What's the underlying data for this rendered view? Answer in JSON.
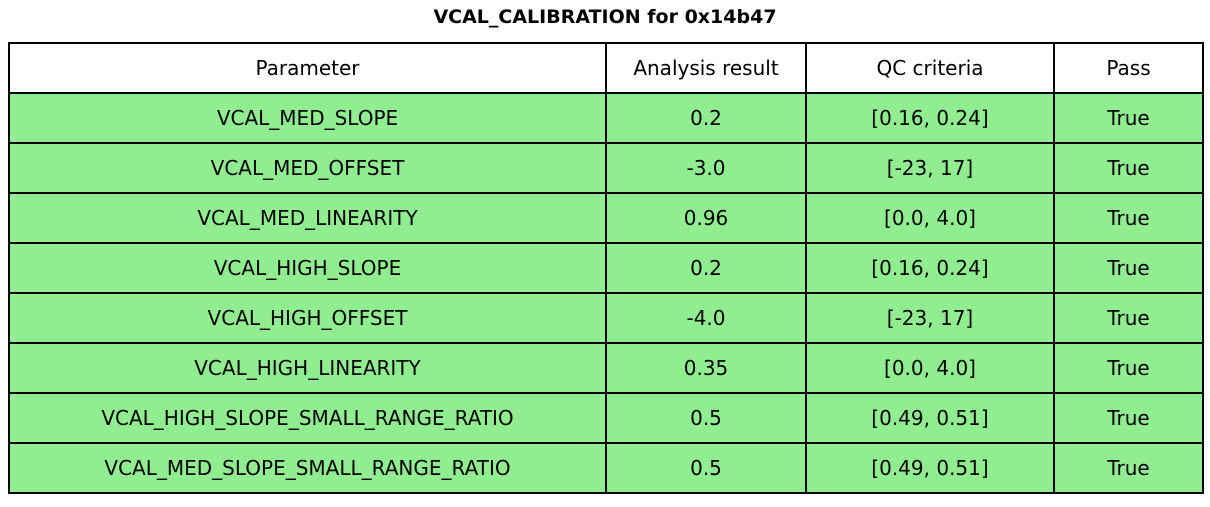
{
  "title": "VCAL_CALIBRATION for 0x14b47",
  "chart_data": {
    "type": "table",
    "title": "VCAL_CALIBRATION for 0x14b47",
    "columns": [
      "Parameter",
      "Analysis result",
      "QC criteria",
      "Pass"
    ],
    "rows": [
      [
        "VCAL_MED_SLOPE",
        "0.2",
        "[0.16, 0.24]",
        "True"
      ],
      [
        "VCAL_MED_OFFSET",
        "-3.0",
        "[-23, 17]",
        "True"
      ],
      [
        "VCAL_MED_LINEARITY",
        "0.96",
        "[0.0, 4.0]",
        "True"
      ],
      [
        "VCAL_HIGH_SLOPE",
        "0.2",
        "[0.16, 0.24]",
        "True"
      ],
      [
        "VCAL_HIGH_OFFSET",
        "-4.0",
        "[-23, 17]",
        "True"
      ],
      [
        "VCAL_HIGH_LINEARITY",
        "0.35",
        "[0.0, 4.0]",
        "True"
      ],
      [
        "VCAL_HIGH_SLOPE_SMALL_RANGE_RATIO",
        "0.5",
        "[0.49, 0.51]",
        "True"
      ],
      [
        "VCAL_MED_SLOPE_SMALL_RANGE_RATIO",
        "0.5",
        "[0.49, 0.51]",
        "True"
      ]
    ],
    "colors": {
      "header_background": "#FFFFFF",
      "row_background": "#90EE90",
      "border": "#000000",
      "text": "#000000"
    },
    "layout": {
      "header_text_align": "center",
      "cell_text_align": "center",
      "grid": true
    }
  }
}
